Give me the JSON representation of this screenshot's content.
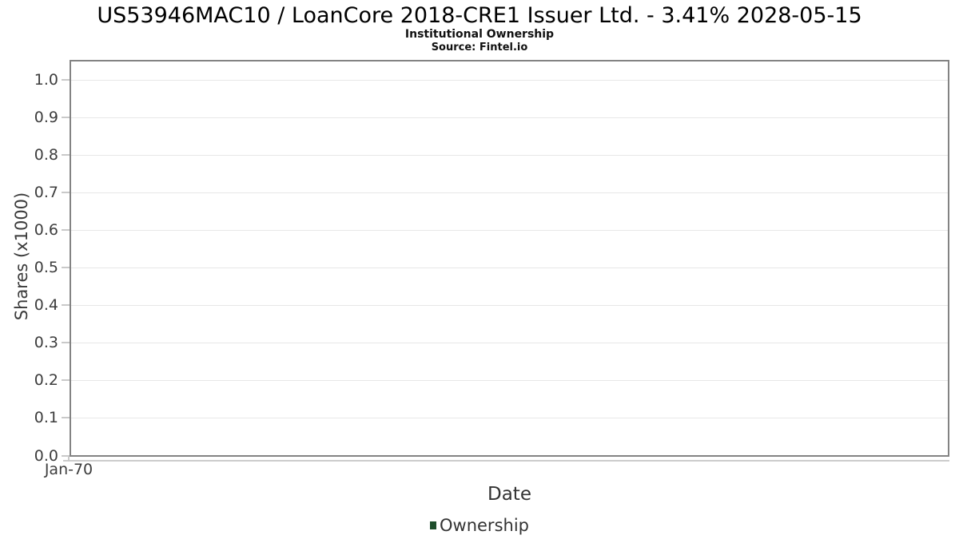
{
  "header": {
    "title": "US53946MAC10 / LoanCore 2018-CRE1 Issuer Ltd. - 3.41% 2028-05-15",
    "subtitle": "Institutional Ownership",
    "source": "Source: Fintel.io"
  },
  "chart_data": {
    "type": "line",
    "title": "US53946MAC10 / LoanCore 2018-CRE1 Issuer Ltd. - 3.41% 2028-05-15",
    "subtitle": "Institutional Ownership",
    "source": "Source: Fintel.io",
    "xlabel": "Date",
    "ylabel": "Shares (x1000)",
    "x_ticks": [
      "Jan-70"
    ],
    "y_ticks": [
      "0.0",
      "0.1",
      "0.2",
      "0.3",
      "0.4",
      "0.5",
      "0.6",
      "0.7",
      "0.8",
      "0.9",
      "1.0"
    ],
    "ylim": [
      0,
      1.05
    ],
    "grid": true,
    "legend": {
      "position": "bottom-center",
      "entries": [
        {
          "label": "Ownership",
          "color": "#1e4e2c"
        }
      ]
    },
    "series": [
      {
        "name": "Ownership",
        "color": "#1e4e2c",
        "x": [],
        "y": []
      }
    ]
  },
  "colors": {
    "plot_border": "#838383",
    "gridline": "#e7e7e7",
    "tick": "#c9c9c9",
    "axis_line": "#cccccc",
    "tick_label": "#3d3d3d",
    "axis_label": "#3a3a3a",
    "title_text": "#000000",
    "legend_green": "#1e4e2c"
  }
}
